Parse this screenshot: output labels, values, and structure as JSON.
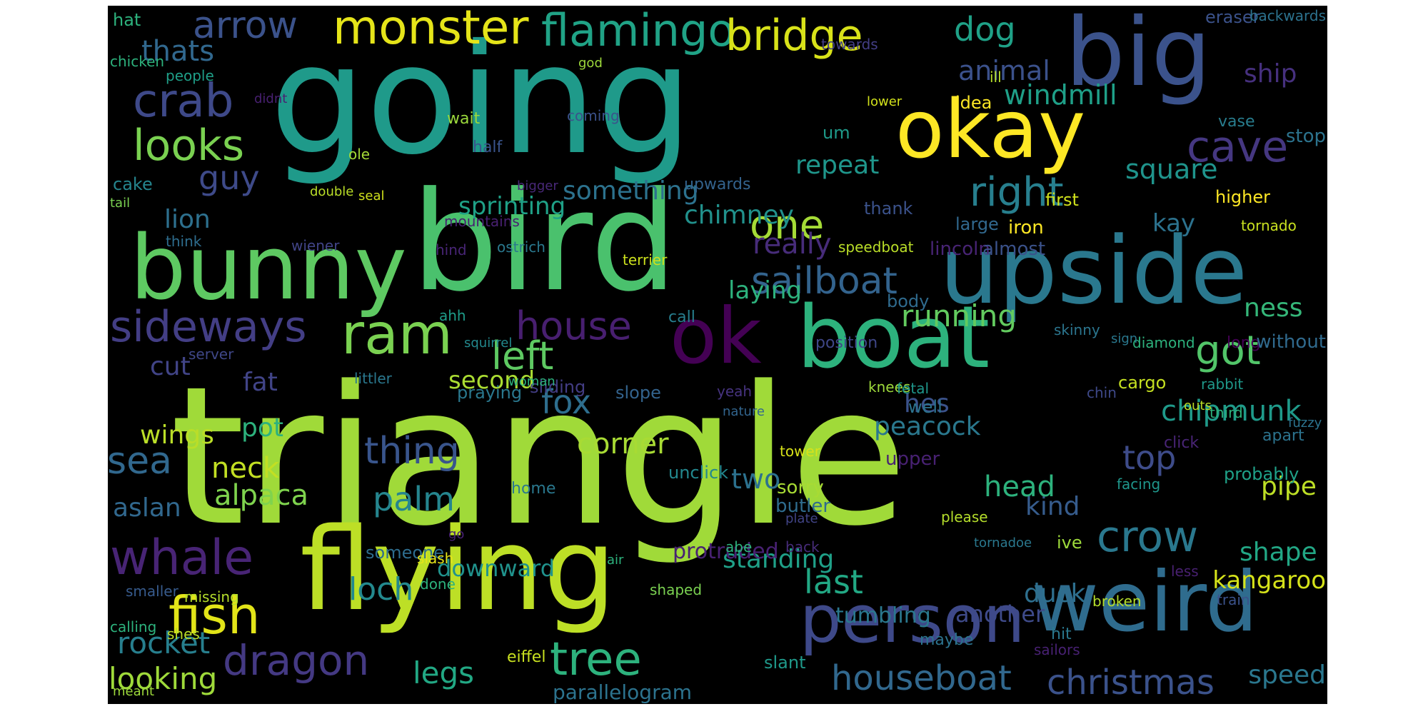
{
  "words": [
    {
      "text": "triangle",
      "color": "#a0da39"
    },
    {
      "text": "going",
      "color": "#1f9a8a"
    },
    {
      "text": "bird",
      "color": "#4ac16d"
    },
    {
      "text": "flying",
      "color": "#bddf26"
    },
    {
      "text": "upside",
      "color": "#2a788e"
    },
    {
      "text": "big",
      "color": "#3b528b"
    },
    {
      "text": "weird",
      "color": "#2f6c8e"
    },
    {
      "text": "bunny",
      "color": "#5ec962"
    },
    {
      "text": "boat",
      "color": "#2db27d"
    },
    {
      "text": "okay",
      "color": "#fde725"
    },
    {
      "text": "ok",
      "color": "#440154"
    },
    {
      "text": "person",
      "color": "#3e4989"
    },
    {
      "text": "monster",
      "color": "#e5e419"
    },
    {
      "text": "flamingo",
      "color": "#20a386"
    },
    {
      "text": "bridge",
      "color": "#d8e219"
    },
    {
      "text": "whale",
      "color": "#482475"
    },
    {
      "text": "fish",
      "color": "#e2e418"
    },
    {
      "text": "tree",
      "color": "#2db27d"
    },
    {
      "text": "ram",
      "color": "#7ad151"
    },
    {
      "text": "sideways",
      "color": "#433e85"
    },
    {
      "text": "crow",
      "color": "#2a788e"
    },
    {
      "text": "dragon",
      "color": "#443983"
    },
    {
      "text": "crab",
      "color": "#3e4989"
    },
    {
      "text": "arrow",
      "color": "#3b528b"
    },
    {
      "text": "looks",
      "color": "#7ad151"
    },
    {
      "text": "cave",
      "color": "#453781"
    },
    {
      "text": "right",
      "color": "#277f8e"
    },
    {
      "text": "one",
      "color": "#a5db36"
    },
    {
      "text": "sailboat",
      "color": "#33638d"
    },
    {
      "text": "house",
      "color": "#481f70"
    },
    {
      "text": "left",
      "color": "#5ec962"
    },
    {
      "text": "got",
      "color": "#52c569"
    },
    {
      "text": "houseboat",
      "color": "#31688e"
    },
    {
      "text": "christmas",
      "color": "#3b528b"
    },
    {
      "text": "last",
      "color": "#22a884"
    },
    {
      "text": "dog",
      "color": "#1fa187"
    },
    {
      "text": "thats",
      "color": "#31688e"
    },
    {
      "text": "guy",
      "color": "#3e4a89"
    },
    {
      "text": "thing",
      "color": "#39558c"
    },
    {
      "text": "sea",
      "color": "#31688e"
    },
    {
      "text": "fox",
      "color": "#2e6e8e"
    },
    {
      "text": "palm",
      "color": "#25858e"
    },
    {
      "text": "loch",
      "color": "#23898e"
    },
    {
      "text": "rocket",
      "color": "#277f8e"
    },
    {
      "text": "looking",
      "color": "#9fda3a"
    },
    {
      "text": "legs",
      "color": "#22a884"
    },
    {
      "text": "running",
      "color": "#63cb5f"
    },
    {
      "text": "square",
      "color": "#1f948c"
    },
    {
      "text": "windmill",
      "color": "#1fa088"
    },
    {
      "text": "animal",
      "color": "#3b518b"
    },
    {
      "text": "ship",
      "color": "#46307e"
    },
    {
      "text": "repeat",
      "color": "#1f968b"
    },
    {
      "text": "chimney",
      "color": "#21918c"
    },
    {
      "text": "something",
      "color": "#2c728e"
    },
    {
      "text": "sprinting",
      "color": "#1fa187"
    },
    {
      "text": "lion",
      "color": "#2d708e"
    },
    {
      "text": "really",
      "color": "#472c7a"
    },
    {
      "text": "laying",
      "color": "#2db27d"
    },
    {
      "text": "kay",
      "color": "#2c728e"
    },
    {
      "text": "ness",
      "color": "#35b779"
    },
    {
      "text": "hes",
      "color": "#3b528b"
    },
    {
      "text": "peacock",
      "color": "#2a788e"
    },
    {
      "text": "chipmunk",
      "color": "#1f9a8a"
    },
    {
      "text": "kind",
      "color": "#365c8d"
    },
    {
      "text": "top",
      "color": "#3e4c8a"
    },
    {
      "text": "pipe",
      "color": "#bddf26"
    },
    {
      "text": "head",
      "color": "#2db27d"
    },
    {
      "text": "corner",
      "color": "#a8db34"
    },
    {
      "text": "neck",
      "color": "#c2df23"
    },
    {
      "text": "alpaca",
      "color": "#7fd34e"
    },
    {
      "text": "aslan",
      "color": "#31688e"
    },
    {
      "text": "wings",
      "color": "#bade28"
    },
    {
      "text": "pot",
      "color": "#2db27d"
    },
    {
      "text": "cut",
      "color": "#414487"
    },
    {
      "text": "fat",
      "color": "#414487"
    },
    {
      "text": "second",
      "color": "#aadc32"
    },
    {
      "text": "two",
      "color": "#2c718e"
    },
    {
      "text": "standing",
      "color": "#1fa088"
    },
    {
      "text": "downward",
      "color": "#20928c"
    },
    {
      "text": "protruded",
      "color": "#482173"
    },
    {
      "text": "tumbling",
      "color": "#2a788e"
    },
    {
      "text": "another",
      "color": "#3e4a89"
    },
    {
      "text": "duck",
      "color": "#2e6f8e"
    },
    {
      "text": "kangaroo",
      "color": "#d5e21a"
    },
    {
      "text": "shape",
      "color": "#22a785"
    },
    {
      "text": "speed",
      "color": "#2a778e"
    },
    {
      "text": "hat",
      "color": "#2db27d"
    },
    {
      "text": "chicken",
      "color": "#2db27d"
    },
    {
      "text": "people",
      "color": "#1f9f88"
    },
    {
      "text": "didnt",
      "color": "#482071"
    },
    {
      "text": "god",
      "color": "#9dd93b"
    },
    {
      "text": "towards",
      "color": "#433e85"
    },
    {
      "text": "eraser",
      "color": "#3b528b"
    },
    {
      "text": "backwards",
      "color": "#2c728e"
    },
    {
      "text": "stop",
      "color": "#2c738e"
    },
    {
      "text": "ill",
      "color": "#b5de2b"
    },
    {
      "text": "idea",
      "color": "#fde725"
    },
    {
      "text": "coming",
      "color": "#3b528b"
    },
    {
      "text": "wait",
      "color": "#9bd93c"
    },
    {
      "text": "half",
      "color": "#3a548c"
    },
    {
      "text": "lower",
      "color": "#d2e21b"
    },
    {
      "text": "seal",
      "color": "#d0e11c"
    },
    {
      "text": "ole",
      "color": "#a5db36"
    },
    {
      "text": "um",
      "color": "#1e9b8a"
    },
    {
      "text": "vase",
      "color": "#287d8e"
    },
    {
      "text": "cake",
      "color": "#25858e"
    },
    {
      "text": "tail",
      "color": "#7ad151"
    },
    {
      "text": "bigger",
      "color": "#482878"
    },
    {
      "text": "double",
      "color": "#bade28"
    },
    {
      "text": "upwards",
      "color": "#33638d"
    },
    {
      "text": "thank",
      "color": "#3b528b"
    },
    {
      "text": "first",
      "color": "#d0e11c"
    },
    {
      "text": "higher",
      "color": "#fde725"
    },
    {
      "text": "large",
      "color": "#31688e"
    },
    {
      "text": "iron",
      "color": "#fde725"
    },
    {
      "text": "tornado",
      "color": "#c8e020"
    },
    {
      "text": "mountains",
      "color": "#482071"
    },
    {
      "text": "think",
      "color": "#2e6d8e"
    },
    {
      "text": "wiener",
      "color": "#414487"
    },
    {
      "text": "ostrich",
      "color": "#2a788e"
    },
    {
      "text": "terrier",
      "color": "#cde11d"
    },
    {
      "text": "speedboat",
      "color": "#bade28"
    },
    {
      "text": "lincoln",
      "color": "#482475"
    },
    {
      "text": "almost",
      "color": "#3b528b"
    },
    {
      "text": "body",
      "color": "#2f6b8e"
    },
    {
      "text": "hind",
      "color": "#482576"
    },
    {
      "text": "ahh",
      "color": "#1e9c89"
    },
    {
      "text": "call",
      "color": "#277e8e"
    },
    {
      "text": "squirrel",
      "color": "#23898e"
    },
    {
      "text": "position",
      "color": "#3f4788"
    },
    {
      "text": "skinny",
      "color": "#2b758e"
    },
    {
      "text": "diamond",
      "color": "#2db27d"
    },
    {
      "text": "long",
      "color": "#440154"
    },
    {
      "text": "sign",
      "color": "#2a788e"
    },
    {
      "text": "without",
      "color": "#306a8e"
    },
    {
      "text": "server",
      "color": "#3f4788"
    },
    {
      "text": "littler",
      "color": "#2a788e"
    },
    {
      "text": "praying",
      "color": "#2a788e"
    },
    {
      "text": "sliding",
      "color": "#433d84"
    },
    {
      "text": "cargo",
      "color": "#c5e021"
    },
    {
      "text": "knees",
      "color": "#9dd93b"
    },
    {
      "text": "yeah",
      "color": "#46337f"
    },
    {
      "text": "fetal",
      "color": "#1f968b"
    },
    {
      "text": "chin",
      "color": "#3e4989"
    },
    {
      "text": "fuzzy",
      "color": "#2c738e"
    },
    {
      "text": "rabbit",
      "color": "#1f998a"
    },
    {
      "text": "woman",
      "color": "#2db27d"
    },
    {
      "text": "slope",
      "color": "#33638d"
    },
    {
      "text": "well",
      "color": "#2c738e"
    },
    {
      "text": "nature",
      "color": "#32658e"
    },
    {
      "text": "third",
      "color": "#2db27d"
    },
    {
      "text": "outs",
      "color": "#bade28"
    },
    {
      "text": "click",
      "color": "#482475"
    },
    {
      "text": "apart",
      "color": "#2c738e"
    },
    {
      "text": "probably",
      "color": "#1fa188"
    },
    {
      "text": "tower",
      "color": "#d8e219"
    },
    {
      "text": "upper",
      "color": "#482173"
    },
    {
      "text": "sorry",
      "color": "#a8db34"
    },
    {
      "text": "butler",
      "color": "#2f6c8e"
    },
    {
      "text": "unclick",
      "color": "#23888e"
    },
    {
      "text": "plate",
      "color": "#414487"
    },
    {
      "text": "facing",
      "color": "#1f968b"
    },
    {
      "text": "home",
      "color": "#2a788e"
    },
    {
      "text": "please",
      "color": "#b5de2b"
    },
    {
      "text": "abe",
      "color": "#2db27d"
    },
    {
      "text": "back",
      "color": "#472c7a"
    },
    {
      "text": "go",
      "color": "#482173"
    },
    {
      "text": "someone",
      "color": "#2e6d8e"
    },
    {
      "text": "slash",
      "color": "#e5e419"
    },
    {
      "text": "air",
      "color": "#2db27d"
    },
    {
      "text": "tornadoe",
      "color": "#2a788e"
    },
    {
      "text": "ive",
      "color": "#9dd93b"
    },
    {
      "text": "done",
      "color": "#2db27d"
    },
    {
      "text": "smaller",
      "color": "#375b8d"
    },
    {
      "text": "missing",
      "color": "#b5de2b"
    },
    {
      "text": "shaped",
      "color": "#7ad151"
    },
    {
      "text": "less",
      "color": "#482071"
    },
    {
      "text": "train",
      "color": "#3b528b"
    },
    {
      "text": "broken",
      "color": "#b5de2b"
    },
    {
      "text": "calling",
      "color": "#2db27d"
    },
    {
      "text": "shes",
      "color": "#bade28"
    },
    {
      "text": "maybe",
      "color": "#2c738e"
    },
    {
      "text": "hit",
      "color": "#2a788e"
    },
    {
      "text": "sailors",
      "color": "#482173"
    },
    {
      "text": "eiffel",
      "color": "#c8e020"
    },
    {
      "text": "slant",
      "color": "#1f998a"
    },
    {
      "text": "meant",
      "color": "#9dd93b"
    },
    {
      "text": "parallelogram",
      "color": "#2c738e"
    }
  ]
}
